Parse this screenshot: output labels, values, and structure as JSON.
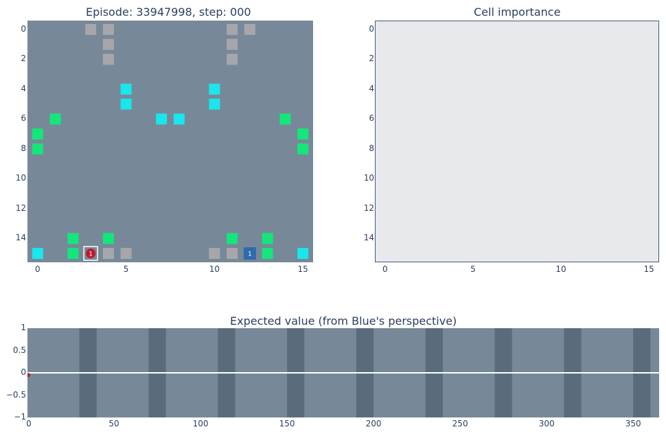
{
  "board": {
    "title": "Episode: 33947998, step: 000",
    "bg": "#778899",
    "grid": 16,
    "x_ticks": [
      "0",
      "5",
      "10",
      "15"
    ],
    "y_ticks": [
      "0",
      "2",
      "4",
      "6",
      "8",
      "10",
      "12",
      "14"
    ],
    "colors": {
      "gray": "#a7a7ab",
      "cyan": "#19e6ed",
      "green": "#14e67a",
      "red": "#c0182a",
      "blue": "#2e6aad"
    },
    "cells": [
      {
        "c": 3,
        "r": 0,
        "kind": "gray"
      },
      {
        "c": 4,
        "r": 0,
        "kind": "gray"
      },
      {
        "c": 11,
        "r": 0,
        "kind": "gray"
      },
      {
        "c": 12,
        "r": 0,
        "kind": "gray"
      },
      {
        "c": 4,
        "r": 1,
        "kind": "gray"
      },
      {
        "c": 11,
        "r": 1,
        "kind": "gray"
      },
      {
        "c": 4,
        "r": 2,
        "kind": "gray"
      },
      {
        "c": 11,
        "r": 2,
        "kind": "gray"
      },
      {
        "c": 5,
        "r": 4,
        "kind": "cyan"
      },
      {
        "c": 10,
        "r": 4,
        "kind": "cyan"
      },
      {
        "c": 5,
        "r": 5,
        "kind": "cyan"
      },
      {
        "c": 10,
        "r": 5,
        "kind": "cyan"
      },
      {
        "c": 1,
        "r": 6,
        "kind": "green"
      },
      {
        "c": 7,
        "r": 6,
        "kind": "cyan"
      },
      {
        "c": 8,
        "r": 6,
        "kind": "cyan"
      },
      {
        "c": 14,
        "r": 6,
        "kind": "green"
      },
      {
        "c": 0,
        "r": 7,
        "kind": "green"
      },
      {
        "c": 15,
        "r": 7,
        "kind": "green"
      },
      {
        "c": 0,
        "r": 8,
        "kind": "green"
      },
      {
        "c": 15,
        "r": 8,
        "kind": "green"
      },
      {
        "c": 2,
        "r": 14,
        "kind": "green"
      },
      {
        "c": 4,
        "r": 14,
        "kind": "green"
      },
      {
        "c": 11,
        "r": 14,
        "kind": "green"
      },
      {
        "c": 13,
        "r": 14,
        "kind": "green"
      },
      {
        "c": 0,
        "r": 15,
        "kind": "cyan"
      },
      {
        "c": 2,
        "r": 15,
        "kind": "green"
      },
      {
        "c": 4,
        "r": 15,
        "kind": "gray"
      },
      {
        "c": 5,
        "r": 15,
        "kind": "gray"
      },
      {
        "c": 10,
        "r": 15,
        "kind": "gray"
      },
      {
        "c": 11,
        "r": 15,
        "kind": "gray"
      },
      {
        "c": 13,
        "r": 15,
        "kind": "green"
      },
      {
        "c": 15,
        "r": 15,
        "kind": "cyan"
      }
    ],
    "units": [
      {
        "c": 3,
        "r": 15,
        "team": "red",
        "label": "1"
      },
      {
        "c": 12,
        "r": 15,
        "team": "blue",
        "label": "1"
      }
    ]
  },
  "importance": {
    "title": "Cell importance",
    "bg": "#e8e9ed",
    "x_ticks": [
      "0",
      "5",
      "10",
      "15"
    ],
    "y_ticks": [
      "0",
      "2",
      "4",
      "6",
      "8",
      "10",
      "12",
      "14"
    ]
  },
  "value_chart": {
    "title": "Expected value (from Blue's perspective)",
    "bg": "#778899",
    "band_color": "#5a6b7c",
    "x_ticks": [
      "0",
      "50",
      "100",
      "150",
      "200",
      "250",
      "300",
      "350"
    ],
    "y_ticks": [
      "1",
      "0.5",
      "0",
      "−0.5",
      "−1"
    ],
    "chart_data": {
      "type": "line",
      "title": "Expected value (from Blue's perspective)",
      "xlim": [
        0,
        365
      ],
      "ylim": [
        -1,
        1
      ],
      "bands": [
        [
          30,
          40
        ],
        [
          70,
          80
        ],
        [
          110,
          120
        ],
        [
          150,
          160
        ],
        [
          190,
          200
        ],
        [
          230,
          240
        ],
        [
          270,
          280
        ],
        [
          310,
          320
        ],
        [
          350,
          360
        ]
      ],
      "zero_line": 0,
      "points": [
        {
          "x": 0,
          "y": -0.05
        }
      ],
      "marker_color": "#c0182a"
    }
  }
}
